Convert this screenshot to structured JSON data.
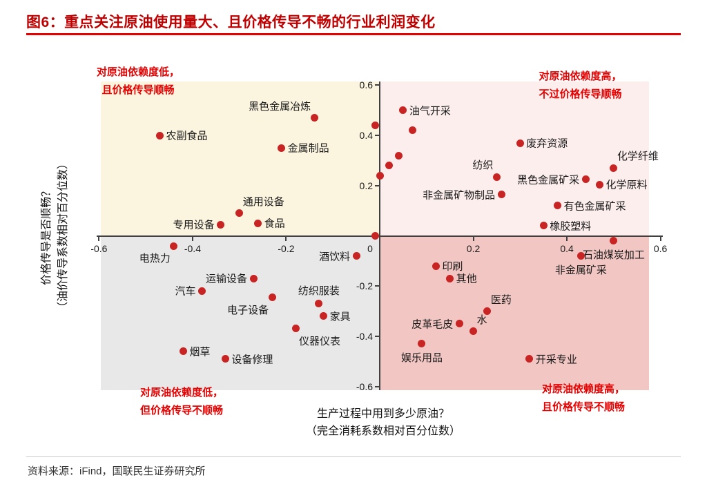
{
  "page": {
    "title": "图6：重点关注原油使用量大、且价格传导不畅的行业利润变化",
    "source": "资料来源：iFind，国联民生证券研究所"
  },
  "chart_data": {
    "type": "scatter",
    "title": "图6：重点关注原油使用量大、且价格传导不畅的行业利润变化",
    "xlabel_line1": "生产过程中用到多少原油？",
    "xlabel_line2": "（完全消耗系数相对百分位数）",
    "ylabel_line1": "价格传导是否顺畅？",
    "ylabel_line2": "（油价传导系数相对百分位数）",
    "xlim": [
      -0.6,
      0.6
    ],
    "ylim": [
      -0.6,
      0.6
    ],
    "x_ticks": [
      -0.6,
      -0.4,
      -0.2,
      0,
      0.2,
      0.4,
      0.6
    ],
    "y_ticks": [
      0.6,
      0.4,
      0.2,
      -0.2,
      -0.4,
      -0.6
    ],
    "point_color": "#c82423",
    "quadrant_colors": {
      "top_left": "#fbf4df",
      "top_right": "#fdeeee",
      "bottom_left": "#e8e8e8",
      "bottom_right": "#f2c7c3"
    },
    "annotations": [
      {
        "position": "top-left",
        "lines": [
          "对原油依赖度低，",
          "且价格传导顺畅"
        ]
      },
      {
        "position": "top-right",
        "lines": [
          "对原油依赖度高，",
          "不过价格传导顺畅"
        ]
      },
      {
        "position": "bottom-left",
        "lines": [
          "对原油依赖度低，",
          "但价格传导不顺畅"
        ]
      },
      {
        "position": "bottom-right",
        "lines": [
          "对原油依赖度高，",
          "且价格传导不顺畅"
        ]
      }
    ],
    "points": [
      {
        "label": "农副食品",
        "x": -0.47,
        "y": 0.4,
        "label_pos": "right"
      },
      {
        "label": "黑色金属冶炼",
        "x": -0.14,
        "y": 0.47,
        "label_pos": "top-left"
      },
      {
        "label": "金属制品",
        "x": -0.21,
        "y": 0.35,
        "label_pos": "right"
      },
      {
        "label": "通用设备",
        "x": -0.3,
        "y": 0.09,
        "label_pos": "top-right"
      },
      {
        "label": "专用设备",
        "x": -0.34,
        "y": 0.045,
        "label_pos": "left"
      },
      {
        "label": "食品",
        "x": -0.26,
        "y": 0.05,
        "label_pos": "right"
      },
      {
        "label": "油气开采",
        "x": 0.05,
        "y": 0.5,
        "label_pos": "right"
      },
      {
        "label": "",
        "x": -0.01,
        "y": 0.44,
        "label_pos": "right"
      },
      {
        "label": "",
        "x": 0.07,
        "y": 0.42,
        "label_pos": "right"
      },
      {
        "label": "",
        "x": 0.04,
        "y": 0.32,
        "label_pos": "right"
      },
      {
        "label": "",
        "x": 0.02,
        "y": 0.28,
        "label_pos": "right"
      },
      {
        "label": "",
        "x": 0.0,
        "y": 0.24,
        "label_pos": "right"
      },
      {
        "label": "",
        "x": -0.01,
        "y": 0.0,
        "label_pos": "right"
      },
      {
        "label": "废弃资源",
        "x": 0.3,
        "y": 0.37,
        "label_pos": "right"
      },
      {
        "label": "纺织",
        "x": 0.25,
        "y": 0.235,
        "label_pos": "top-left"
      },
      {
        "label": "非金属矿物制品",
        "x": 0.26,
        "y": 0.165,
        "label_pos": "left"
      },
      {
        "label": "化学纤维",
        "x": 0.5,
        "y": 0.27,
        "label_pos": "top-right"
      },
      {
        "label": "黑色金属矿采",
        "x": 0.44,
        "y": 0.225,
        "label_pos": "left"
      },
      {
        "label": "化学原料",
        "x": 0.47,
        "y": 0.205,
        "label_pos": "right"
      },
      {
        "label": "有色金属矿采",
        "x": 0.38,
        "y": 0.12,
        "label_pos": "right"
      },
      {
        "label": "橡胶塑料",
        "x": 0.35,
        "y": 0.04,
        "label_pos": "right"
      },
      {
        "label": "石油煤炭加工",
        "x": 0.5,
        "y": -0.02,
        "label_pos": "bottom"
      },
      {
        "label": "非金属矿采",
        "x": 0.43,
        "y": -0.08,
        "label_pos": "bottom"
      },
      {
        "label": "印刷",
        "x": 0.12,
        "y": -0.12,
        "label_pos": "right"
      },
      {
        "label": "其他",
        "x": 0.15,
        "y": -0.17,
        "label_pos": "right"
      },
      {
        "label": "医药",
        "x": 0.23,
        "y": -0.3,
        "label_pos": "top-right"
      },
      {
        "label": "皮革毛皮",
        "x": 0.17,
        "y": -0.35,
        "label_pos": "left"
      },
      {
        "label": "水",
        "x": 0.2,
        "y": -0.38,
        "label_pos": "top-right"
      },
      {
        "label": "娱乐用品",
        "x": 0.09,
        "y": -0.43,
        "label_pos": "bottom"
      },
      {
        "label": "开采专业",
        "x": 0.32,
        "y": -0.49,
        "label_pos": "right"
      },
      {
        "label": "电热力",
        "x": -0.44,
        "y": -0.04,
        "label_pos": "bottom-left"
      },
      {
        "label": "汽车",
        "x": -0.38,
        "y": -0.22,
        "label_pos": "left"
      },
      {
        "label": "运输设备",
        "x": -0.27,
        "y": -0.17,
        "label_pos": "left"
      },
      {
        "label": "电子设备",
        "x": -0.23,
        "y": -0.245,
        "label_pos": "bottom-left"
      },
      {
        "label": "纺织服装",
        "x": -0.13,
        "y": -0.27,
        "label_pos": "top"
      },
      {
        "label": "家具",
        "x": -0.12,
        "y": -0.32,
        "label_pos": "right"
      },
      {
        "label": "仪器仪表",
        "x": -0.18,
        "y": -0.37,
        "label_pos": "bottom-right"
      },
      {
        "label": "烟草",
        "x": -0.42,
        "y": -0.46,
        "label_pos": "right"
      },
      {
        "label": "设备修理",
        "x": -0.33,
        "y": -0.49,
        "label_pos": "right"
      },
      {
        "label": "酒饮料",
        "x": -0.05,
        "y": -0.08,
        "label_pos": "left"
      }
    ]
  }
}
